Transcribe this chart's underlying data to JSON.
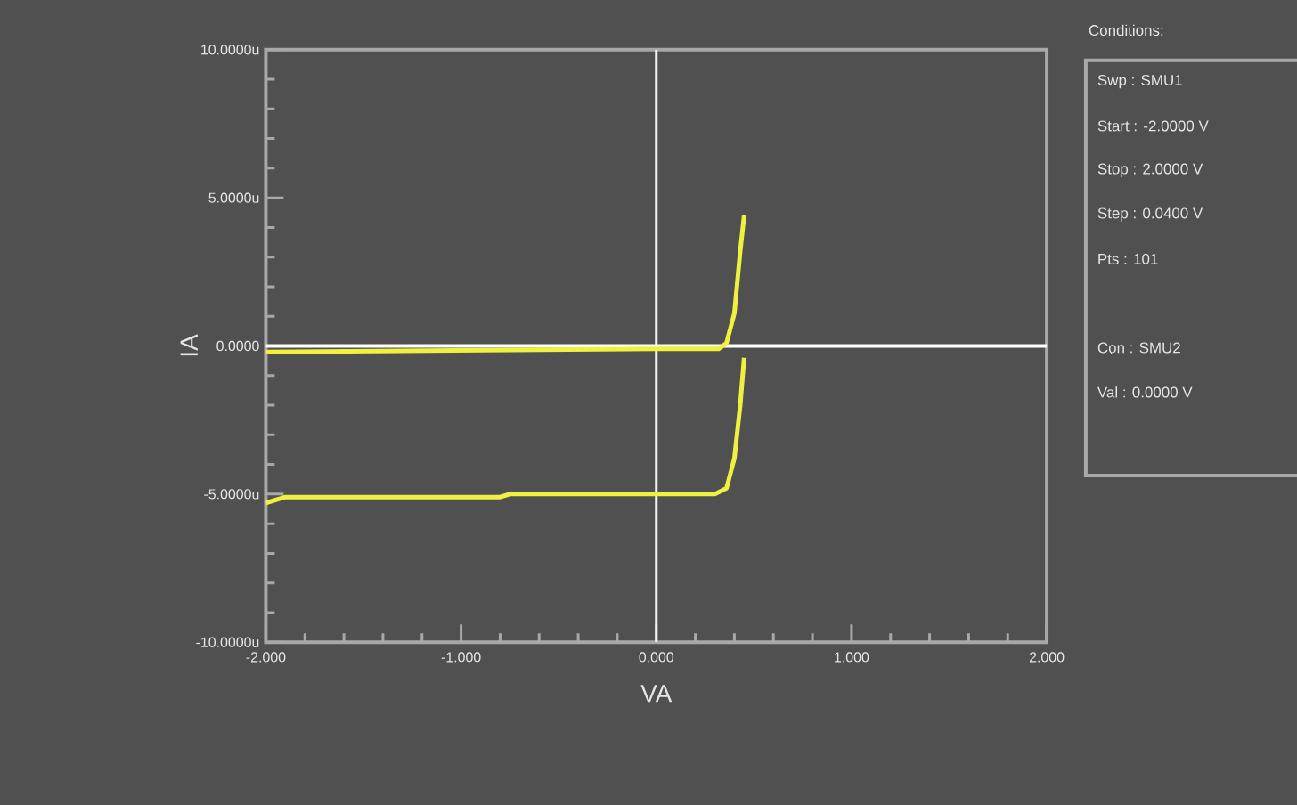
{
  "chart_data": {
    "type": "line",
    "xlabel": "VA",
    "ylabel": "IA",
    "xlim": [
      -2,
      2
    ],
    "ylim": [
      -10,
      10
    ],
    "xticks": [
      {
        "value": -2,
        "label": "-2.000"
      },
      {
        "value": -1,
        "label": "-1.000"
      },
      {
        "value": 0,
        "label": "0.000"
      },
      {
        "value": 1,
        "label": "1.000"
      },
      {
        "value": 2,
        "label": "2.000"
      }
    ],
    "yticks": [
      {
        "value": -10,
        "label": "-10.0000u"
      },
      {
        "value": -5,
        "label": "-5.0000u"
      },
      {
        "value": 0,
        "label": "0.0000"
      },
      {
        "value": 5,
        "label": "5.0000u"
      },
      {
        "value": 10,
        "label": "10.0000u"
      }
    ],
    "series": [
      {
        "color": "#f0f040",
        "x": [
          -2,
          0,
          0.32,
          0.36,
          0.4,
          0.43,
          0.45
        ],
        "values": [
          -0.2,
          -0.1,
          -0.1,
          0.1,
          1.1,
          3.2,
          4.4
        ]
      },
      {
        "color": "#f0f040",
        "x": [
          -2,
          -1.9,
          -0.8,
          -0.75,
          0.3,
          0.36,
          0.4,
          0.43,
          0.45
        ],
        "values": [
          -5.3,
          -5.1,
          -5.1,
          -5.0,
          -5.0,
          -4.8,
          -3.8,
          -2,
          -0.4
        ]
      }
    ],
    "ref_lines": [
      {
        "axis": "x",
        "value": 0,
        "color": "#f2f2f2"
      },
      {
        "axis": "y",
        "value": 0,
        "color": "#ffffff"
      }
    ],
    "grid": false,
    "annotations": [
      "Conditions:",
      "Swp : SMU1",
      "Start : -2.0000 V",
      "Stop : 2.0000 V",
      "Step : 0.0400 V",
      "Pts : 101",
      "Con : SMU2",
      "Val : 0.0000 V"
    ]
  }
}
